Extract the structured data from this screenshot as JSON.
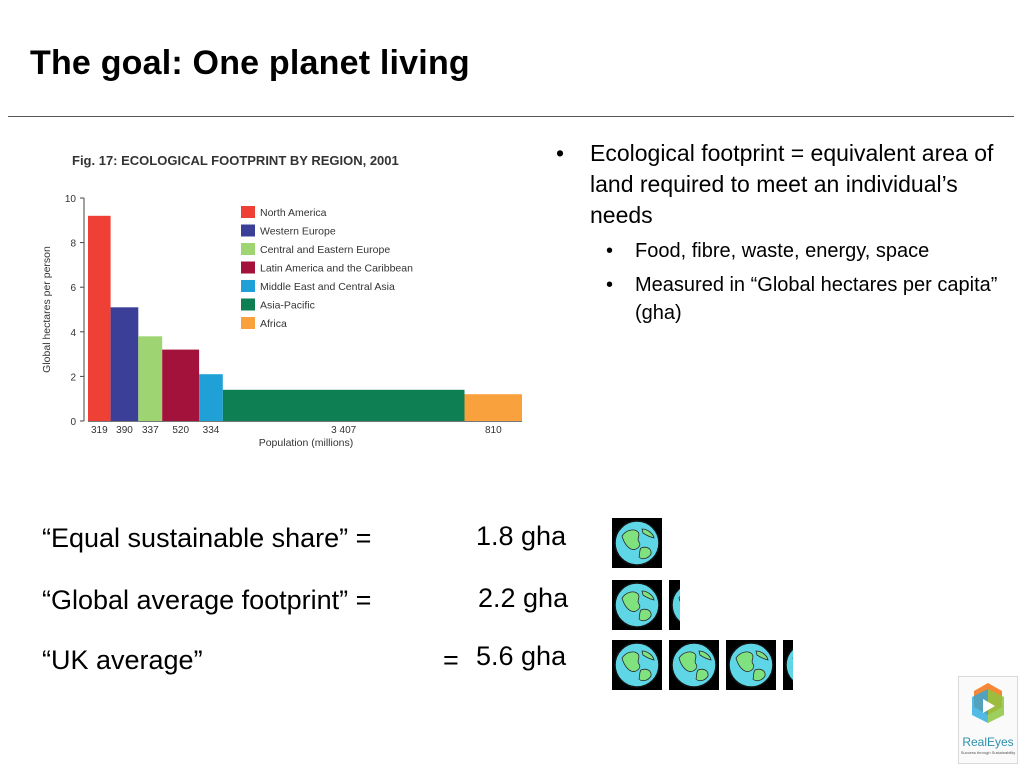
{
  "slide": {
    "title": "The goal: One planet living"
  },
  "bullets": [
    {
      "level": 1,
      "text": "Ecological footprint = equivalent area of land required to meet an individual’s needs"
    },
    {
      "level": 2,
      "text": "Food, fibre, waste, energy, space"
    },
    {
      "level": 2,
      "text": "Measured in “Global hectares per capita” (gha)"
    }
  ],
  "chart_data": {
    "type": "bar",
    "variable_width": true,
    "title": "Fig. 17: ECOLOGICAL FOOTPRINT BY REGION, 2001",
    "ylabel": "Global hectares per person",
    "xlabel": "Population (millions)",
    "ylim": [
      0,
      10
    ],
    "yticks": [
      0,
      2,
      4,
      6,
      8,
      10
    ],
    "grid": false,
    "legend_position": "upper-middle",
    "series": [
      {
        "name": "North America",
        "population": 319,
        "population_label": "319",
        "value": 9.2,
        "color": "#ee4035"
      },
      {
        "name": "Western Europe",
        "population": 390,
        "population_label": "390",
        "value": 5.1,
        "color": "#3b3f98"
      },
      {
        "name": "Central and Eastern Europe",
        "population": 337,
        "population_label": "337",
        "value": 3.8,
        "color": "#9fd473"
      },
      {
        "name": "Latin America and the Caribbean",
        "population": 520,
        "population_label": "520",
        "value": 3.2,
        "color": "#a3123a"
      },
      {
        "name": "Middle East and Central Asia",
        "population": 334,
        "population_label": "334",
        "value": 2.1,
        "color": "#1fa1d8"
      },
      {
        "name": "Asia-Pacific",
        "population": 3407,
        "population_label": "3 407",
        "value": 1.4,
        "color": "#0e7f52"
      },
      {
        "name": "Africa",
        "population": 810,
        "population_label": "810",
        "value": 1.2,
        "color": "#f9a13c"
      }
    ]
  },
  "shares": [
    {
      "label": "“Equal sustainable share” =",
      "eq": "",
      "value": "1.8 gha",
      "globes": 1.0
    },
    {
      "label": "“Global average footprint” =",
      "eq": "",
      "value": "2.2 gha",
      "globes": 1.22
    },
    {
      "label": "“UK average”",
      "eq": "=",
      "value": "5.6 gha",
      "globes": 3.1
    }
  ],
  "logo": {
    "name": "RealEyes",
    "tagline": "Success through Sustainability"
  },
  "colors": {
    "globe_ocean": "#5ed6e6",
    "globe_land": "#7fe27f",
    "globe_frame": "#000000",
    "rule": "#555555"
  }
}
